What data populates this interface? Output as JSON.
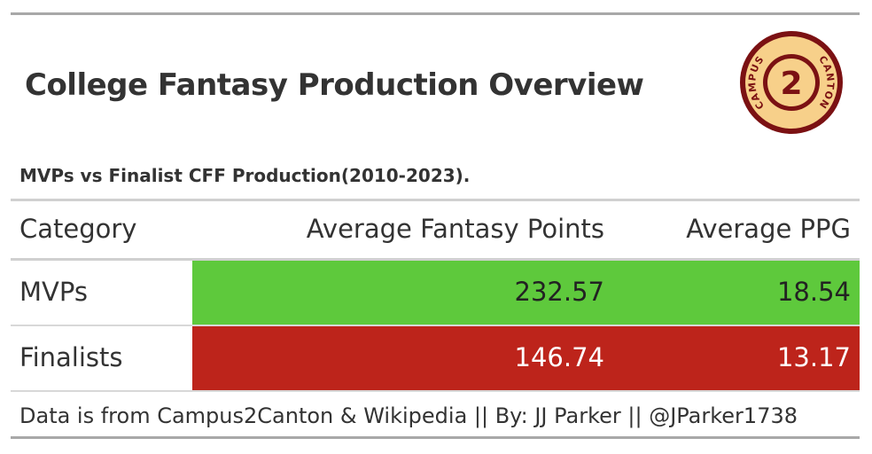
{
  "header": {
    "title": "College Fantasy Production Overview",
    "subtitle": "MVPs vs Finalist CFF Production(2010-2023)."
  },
  "logo": {
    "icon": "campus2canton-logo-icon",
    "number": "2",
    "text_left": "CAMPUS",
    "text_right": "CANTON",
    "colors": {
      "ring": "#7b1113",
      "fill": "#f7d08a"
    }
  },
  "chart_data": {
    "type": "table",
    "columns": [
      "Category",
      "Average Fantasy Points",
      "Average PPG"
    ],
    "rows": [
      {
        "category": "MVPs",
        "avg_points": "232.57",
        "avg_ppg": "18.54",
        "fill": "#5ec93c",
        "text_color": "#222222"
      },
      {
        "category": "Finalists",
        "avg_points": "146.74",
        "avg_ppg": "13.17",
        "fill": "#bd241b",
        "text_color": "#ffffff"
      }
    ]
  },
  "footer": {
    "source": "Data is from Campus2Canton & Wikipedia || By: JJ Parker || @JParker1738"
  }
}
